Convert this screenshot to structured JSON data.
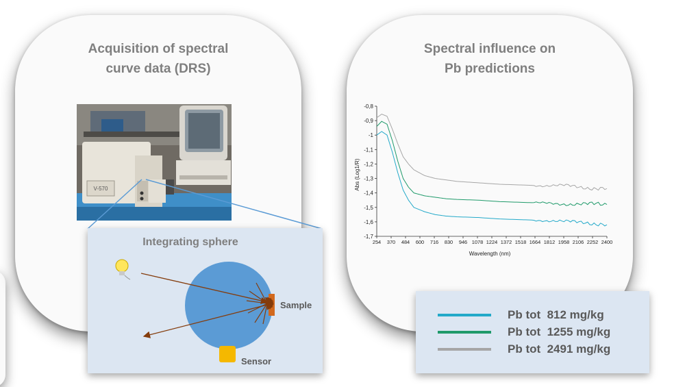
{
  "left_card": {
    "title_line1": "Acquisition of spectral",
    "title_line2": "curve data (DRS)"
  },
  "right_card": {
    "title_line1": "Spectral influence on",
    "title_line2": "Pb predictions"
  },
  "photo": {
    "device_label": "V-570"
  },
  "sphere_panel": {
    "title": "Integrating sphere",
    "sample_label": "Sample",
    "sensor_label": "Sensor",
    "colors": {
      "sphere": "#5b9bd5",
      "sample": "#d2691e",
      "sensor": "#f5b800",
      "rays": "#843c0c"
    }
  },
  "legend": {
    "items": [
      {
        "label": "Pb tot  812 mg/kg",
        "color": "#23a9c9"
      },
      {
        "label": "Pb tot  1255 mg/kg",
        "color": "#1f9a6a"
      },
      {
        "label": "Pb tot  2491 mg/kg",
        "color": "#a6a6a6"
      }
    ]
  },
  "chart_data": {
    "type": "line",
    "xlabel": "Wavelength (nm)",
    "ylabel": "Abs (Log1/R)",
    "ylim": [
      -1.7,
      -0.8
    ],
    "xlim": [
      254,
      2400
    ],
    "x_ticks": [
      "254",
      "370",
      "484",
      "600",
      "716",
      "830",
      "946",
      "1078",
      "1224",
      "1372",
      "1518",
      "1664",
      "1812",
      "1958",
      "2106",
      "2252",
      "2400"
    ],
    "y_ticks": [
      "-0,8",
      "-0,9",
      "-1",
      "-1,1",
      "-1,2",
      "-1,3",
      "-1,4",
      "-1,5",
      "-1,6",
      "-1,7"
    ],
    "grid": false,
    "x": [
      254,
      300,
      350,
      400,
      450,
      500,
      550,
      600,
      700,
      800,
      900,
      1000,
      1200,
      1400,
      1600,
      1800,
      2000,
      2200,
      2400
    ],
    "series": [
      {
        "color": "#a6a6a6",
        "values": [
          -0.88,
          -0.855,
          -0.87,
          -0.96,
          -1.06,
          -1.15,
          -1.2,
          -1.24,
          -1.28,
          -1.3,
          -1.31,
          -1.32,
          -1.33,
          -1.34,
          -1.345,
          -1.35,
          -1.35,
          -1.36,
          -1.37
        ]
      },
      {
        "color": "#1f9a6a",
        "values": [
          -0.94,
          -0.905,
          -0.925,
          -1.04,
          -1.18,
          -1.3,
          -1.36,
          -1.4,
          -1.42,
          -1.43,
          -1.44,
          -1.445,
          -1.45,
          -1.46,
          -1.465,
          -1.47,
          -1.475,
          -1.48,
          -1.48
        ]
      },
      {
        "color": "#23a9c9",
        "values": [
          -1.0,
          -0.975,
          -1.0,
          -1.12,
          -1.26,
          -1.38,
          -1.45,
          -1.5,
          -1.53,
          -1.55,
          -1.56,
          -1.565,
          -1.57,
          -1.58,
          -1.585,
          -1.59,
          -1.6,
          -1.6,
          -1.62
        ]
      }
    ]
  }
}
